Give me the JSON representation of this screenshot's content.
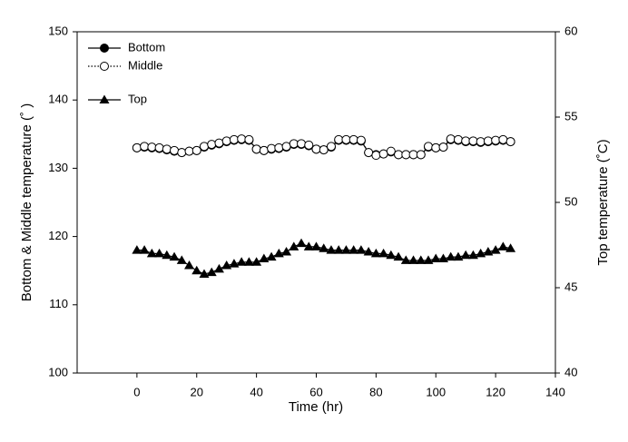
{
  "chart_data": {
    "type": "line",
    "x_label": "Time (hr)",
    "y_label": "Bottom & Middle temperature (˚ )",
    "y2_label": "Top temperature (˚C)",
    "x": [
      0,
      2.5,
      5,
      7.5,
      10,
      12.5,
      15,
      17.5,
      20,
      22.5,
      25,
      27.5,
      30,
      32.5,
      35,
      37.5,
      40,
      42.5,
      45,
      47.5,
      50,
      52.5,
      55,
      57.5,
      60,
      62.5,
      65,
      67.5,
      70,
      72.5,
      75,
      77.5,
      80,
      82.5,
      85,
      87.5,
      90,
      92.5,
      95,
      97.5,
      100,
      102.5,
      105,
      107.5,
      110,
      112.5,
      115,
      117.5,
      120,
      122.5,
      125
    ],
    "xlim": [
      -20,
      140
    ],
    "xticks": [
      0,
      20,
      40,
      60,
      80,
      100,
      120,
      140
    ],
    "ylim": [
      100,
      150
    ],
    "yticks": [
      100,
      110,
      120,
      130,
      140,
      150
    ],
    "y2lim": [
      40,
      60
    ],
    "y2ticks": [
      40,
      45,
      50,
      55,
      60
    ],
    "legend": "upper left",
    "series": [
      {
        "name": "Bottom",
        "color": "#000000",
        "marker": "filled-circle",
        "line_style": "solid",
        "values": [
          133,
          133.1,
          133,
          132.9,
          132.7,
          132.5,
          132.3,
          132.5,
          132.6,
          133.1,
          133.4,
          133.6,
          133.9,
          134.1,
          134.2,
          134.1,
          132.8,
          132.6,
          132.8,
          132.9,
          133.1,
          133.5,
          133.5,
          133.3,
          132.8,
          132.7,
          133.1,
          134.1,
          134.1,
          134.1,
          134,
          132.3,
          132,
          132.1,
          132.4,
          132,
          132,
          132,
          132,
          133.1,
          133,
          133.1,
          134.2,
          134.1,
          133.9,
          133.9,
          133.8,
          133.9,
          134,
          134.1,
          133.9
        ]
      },
      {
        "name": "Middle",
        "color": "#000000",
        "marker": "open-circle",
        "line_style": "dotted",
        "values": [
          133,
          133.2,
          133.1,
          133,
          132.8,
          132.6,
          132.3,
          132.5,
          132.6,
          133.2,
          133.5,
          133.7,
          134,
          134.2,
          134.3,
          134.2,
          132.8,
          132.6,
          132.9,
          133,
          133.2,
          133.6,
          133.6,
          133.4,
          132.8,
          132.7,
          133.2,
          134.2,
          134.2,
          134.2,
          134.1,
          132.3,
          131.9,
          132.1,
          132.5,
          132,
          132,
          132,
          132,
          133.2,
          133,
          133.1,
          134.3,
          134.2,
          134,
          134,
          133.9,
          134,
          134.1,
          134.2,
          133.9
        ]
      },
      {
        "name": "Top",
        "color": "#000000",
        "marker": "filled-triangle",
        "line_style": "solid",
        "axis": "y2",
        "values": [
          47.2,
          47.2,
          47,
          47,
          46.9,
          46.8,
          46.6,
          46.3,
          46,
          45.8,
          45.9,
          46.1,
          46.3,
          46.4,
          46.5,
          46.5,
          46.5,
          46.7,
          46.8,
          47,
          47.1,
          47.4,
          47.6,
          47.4,
          47.4,
          47.3,
          47.2,
          47.2,
          47.2,
          47.2,
          47.2,
          47.1,
          47,
          47,
          46.9,
          46.8,
          46.6,
          46.6,
          46.6,
          46.6,
          46.7,
          46.7,
          46.8,
          46.8,
          46.9,
          46.9,
          47,
          47.1,
          47.2,
          47.4,
          47.3
        ]
      }
    ]
  }
}
